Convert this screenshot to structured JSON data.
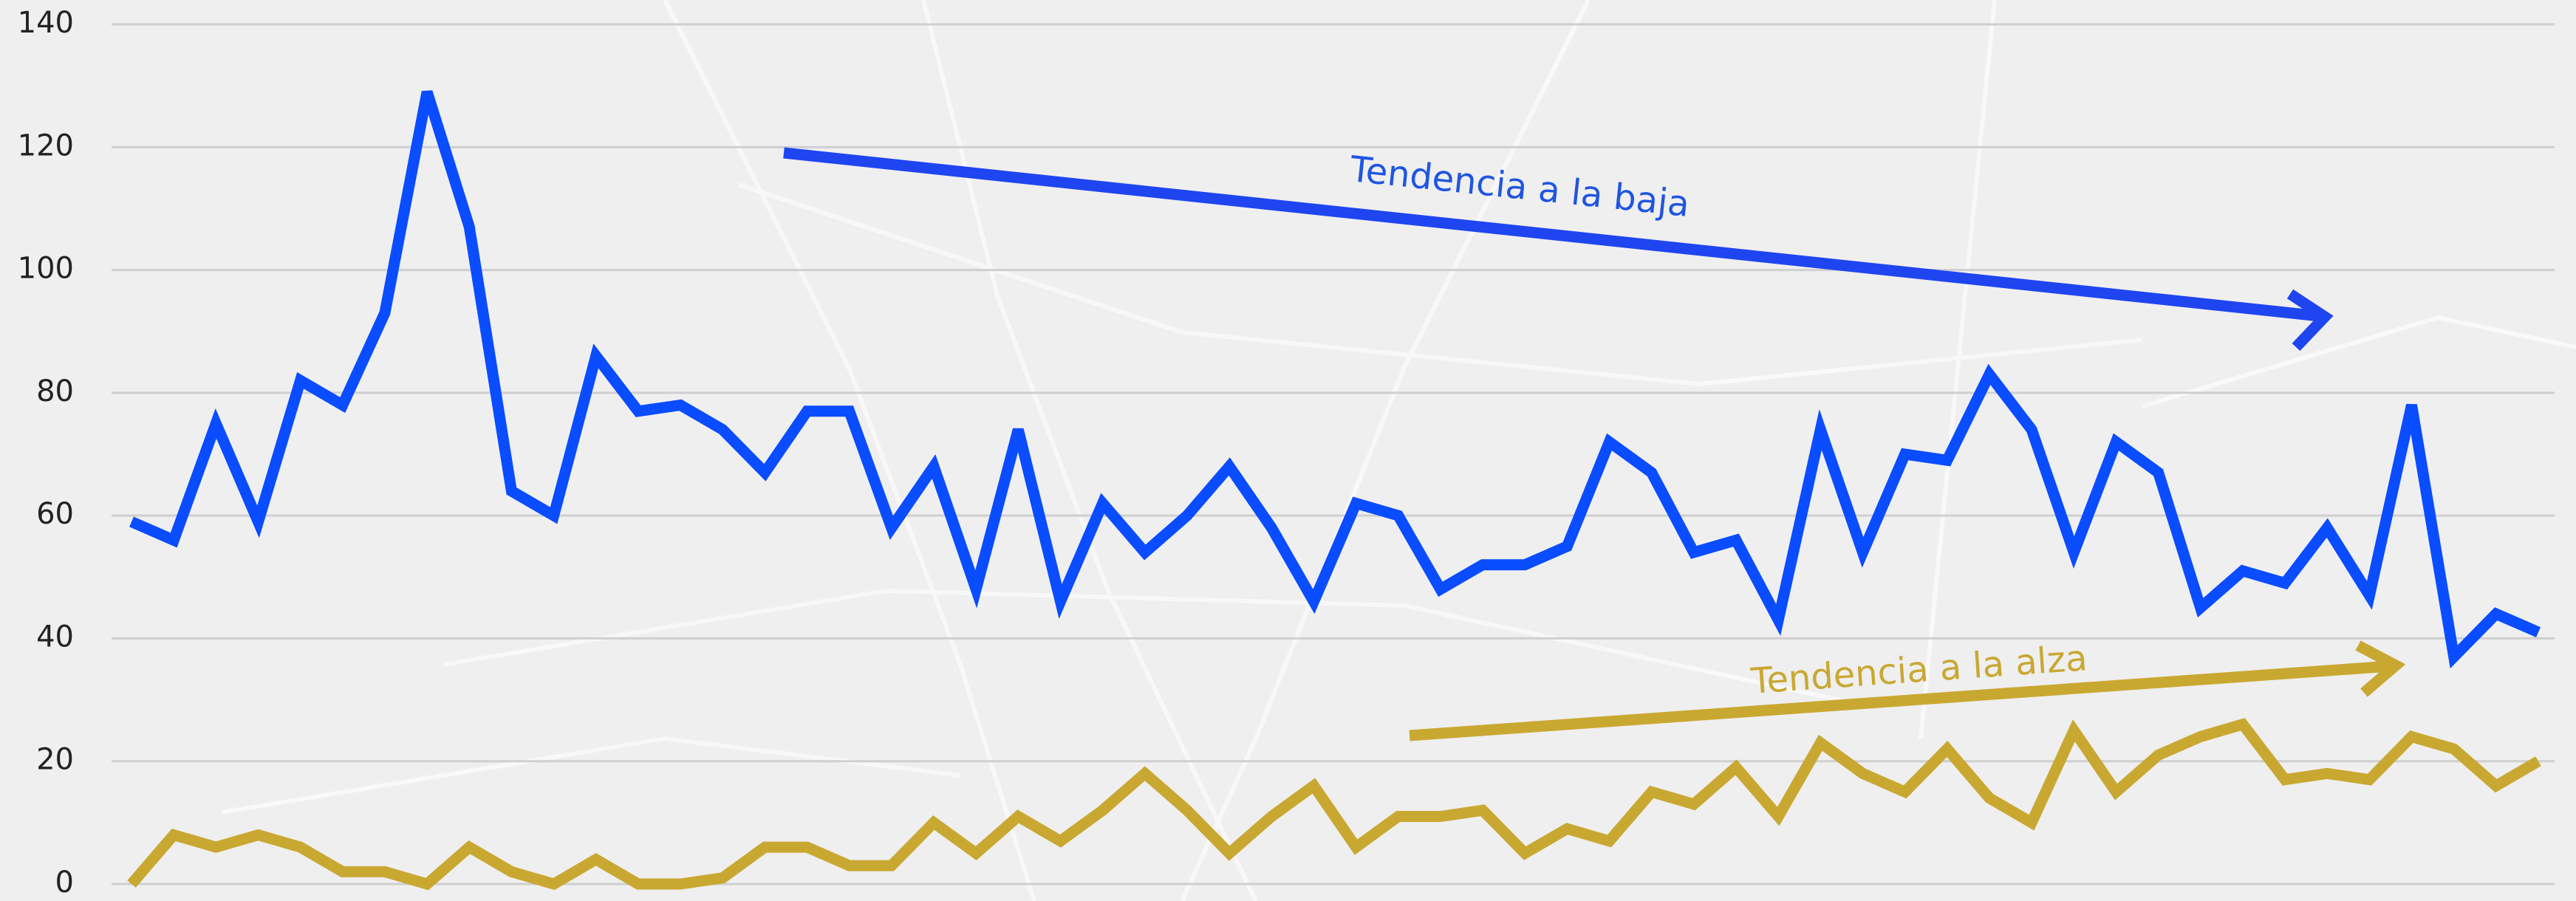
{
  "chart_data": {
    "type": "line",
    "annotations": [
      "Tendencia a la baja",
      "Tendencia a la alza"
    ],
    "series": [
      {
        "color": "#0a4cff",
        "values": [
          59,
          56,
          75,
          59,
          82,
          78,
          93,
          129,
          107,
          64,
          60,
          86,
          77,
          78,
          74,
          67,
          77,
          77,
          58,
          68,
          48,
          74,
          46,
          62,
          54,
          60,
          68,
          58,
          46,
          62,
          60,
          48,
          52,
          52,
          55,
          72,
          67,
          54,
          56,
          43,
          74,
          54,
          70,
          69,
          83,
          74,
          54,
          72,
          67,
          45,
          51,
          49,
          58,
          47,
          78,
          37,
          44,
          41
        ]
      },
      {
        "color": "#c9a832",
        "values": [
          0,
          8,
          6,
          8,
          6,
          2,
          2,
          0,
          6,
          2,
          0,
          4,
          0,
          0,
          1,
          6,
          6,
          3,
          3,
          10,
          5,
          11,
          7,
          12,
          18,
          12,
          5,
          11,
          16,
          6,
          11,
          11,
          12,
          5,
          9,
          7,
          15,
          13,
          19,
          11,
          23,
          18,
          15,
          22,
          14,
          10,
          25,
          15,
          21,
          24,
          26,
          17,
          18,
          17,
          24,
          22,
          16,
          20
        ]
      }
    ],
    "ylim": [
      0,
      140
    ],
    "yticks": [
      0,
      20,
      40,
      60,
      80,
      100,
      120,
      140
    ],
    "grid": true
  }
}
